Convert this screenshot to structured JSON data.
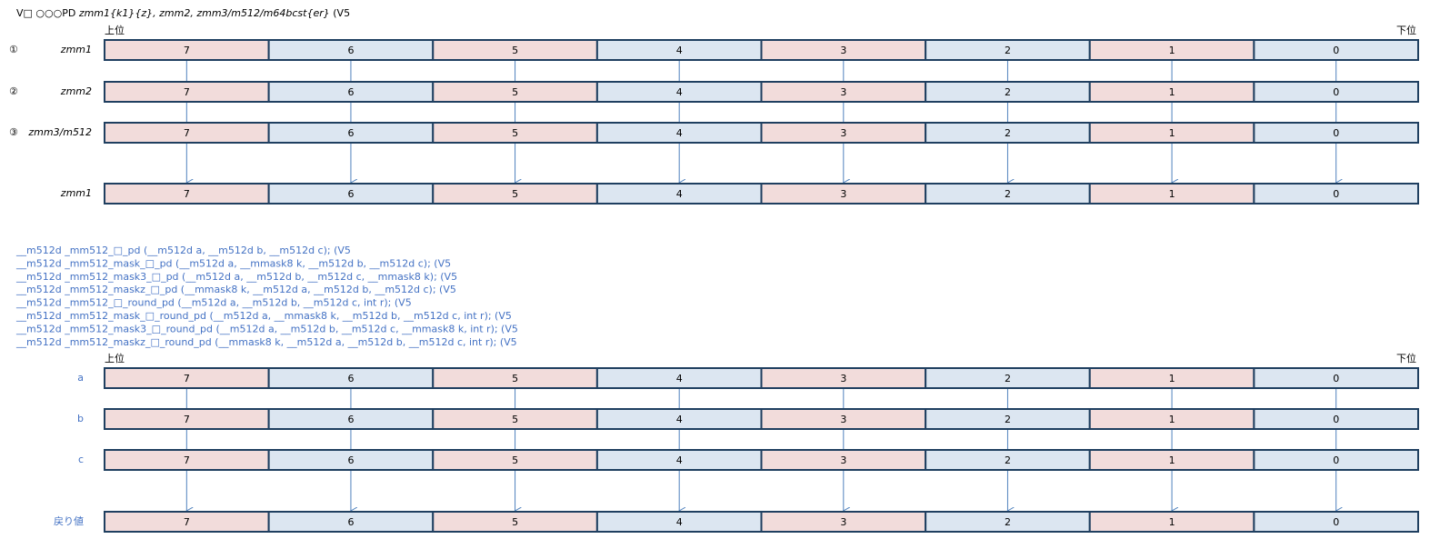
{
  "title": {
    "mnemonic": "V□ ○○○PD",
    "operands": "zmm1{k1}{z}, zmm2, zmm3/m512/m64bcst{er}",
    "extension": "(V5"
  },
  "top_diagram": {
    "upper": "上位",
    "lower": "下位",
    "rows": [
      {
        "marker": "①",
        "label": "zmm1",
        "cells": [
          "7",
          "6",
          "5",
          "4",
          "3",
          "2",
          "1",
          "0"
        ]
      },
      {
        "marker": "②",
        "label": "zmm2",
        "cells": [
          "7",
          "6",
          "5",
          "4",
          "3",
          "2",
          "1",
          "0"
        ]
      },
      {
        "marker": "③",
        "label": "zmm3/m512",
        "cells": [
          "7",
          "6",
          "5",
          "4",
          "3",
          "2",
          "1",
          "0"
        ]
      }
    ],
    "result": {
      "label": "zmm1",
      "cells": [
        "7",
        "6",
        "5",
        "4",
        "3",
        "2",
        "1",
        "0"
      ]
    }
  },
  "intrinsics": [
    "__m512d  _mm512_□_pd  (__m512d a, __m512d b, __m512d c);   (V5",
    "__m512d  _mm512_mask_□_pd  (__m512d a, __mmask8 k, __m512d b, __m512d c);   (V5",
    "__m512d  _mm512_mask3_□_pd  (__m512d a, __m512d b, __m512d c, __mmask8 k);   (V5",
    "__m512d  _mm512_maskz_□_pd  (__mmask8 k, __m512d a, __m512d b, __m512d c);   (V5",
    "__m512d  _mm512_□_round_pd  (__m512d a, __m512d b, __m512d c, int r);   (V5",
    "__m512d  _mm512_mask_□_round_pd  (__m512d a, __mmask8 k, __m512d b, __m512d c, int r);   (V5",
    "__m512d  _mm512_mask3_□_round_pd  (__m512d a, __m512d b, __m512d c, __mmask8 k, int r);   (V5",
    "__m512d  _mm512_maskz_□_round_pd  (__mmask8 k, __m512d a, __m512d b, __m512d c, int r);   (V5"
  ],
  "bottom_diagram": {
    "upper": "上位",
    "lower": "下位",
    "rows": [
      {
        "label": "a",
        "cells": [
          "7",
          "6",
          "5",
          "4",
          "3",
          "2",
          "1",
          "0"
        ]
      },
      {
        "label": "b",
        "cells": [
          "7",
          "6",
          "5",
          "4",
          "3",
          "2",
          "1",
          "0"
        ]
      },
      {
        "label": "c",
        "cells": [
          "7",
          "6",
          "5",
          "4",
          "3",
          "2",
          "1",
          "0"
        ]
      }
    ],
    "result": {
      "label": "戻り値",
      "cells": [
        "7",
        "6",
        "5",
        "4",
        "3",
        "2",
        "1",
        "0"
      ]
    }
  }
}
